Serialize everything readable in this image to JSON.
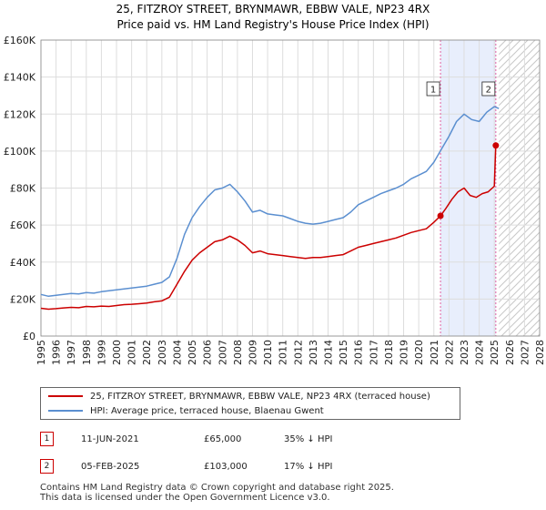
{
  "chart_data": {
    "type": "line",
    "title_line1": "25, FITZROY STREET, BRYNMAWR, EBBW VALE, NP23 4RX",
    "title_line2": "Price paid vs. HM Land Registry's House Price Index (HPI)",
    "xlim": [
      1995,
      2028
    ],
    "ylim": [
      0,
      160000
    ],
    "x_ticks": [
      "1995",
      "1996",
      "1997",
      "1998",
      "1999",
      "2000",
      "2001",
      "2002",
      "2003",
      "2004",
      "2005",
      "2006",
      "2007",
      "2008",
      "2009",
      "2010",
      "2011",
      "2012",
      "2013",
      "2014",
      "2015",
      "2016",
      "2017",
      "2018",
      "2019",
      "2020",
      "2021",
      "2022",
      "2023",
      "2024",
      "2025",
      "2026",
      "2027",
      "2028"
    ],
    "y_ticks": [
      {
        "value": 0,
        "label": "£0"
      },
      {
        "value": 20000,
        "label": "£20K"
      },
      {
        "value": 40000,
        "label": "£40K"
      },
      {
        "value": 60000,
        "label": "£60K"
      },
      {
        "value": 80000,
        "label": "£80K"
      },
      {
        "value": 100000,
        "label": "£100K"
      },
      {
        "value": 120000,
        "label": "£120K"
      },
      {
        "value": 140000,
        "label": "£140K"
      },
      {
        "value": 160000,
        "label": "£160K"
      }
    ],
    "highlight_range": [
      2021.44,
      2025.1
    ],
    "forecast_start": 2025.3,
    "series": [
      {
        "name": "25, FITZROY STREET, BRYNMAWR, EBBW VALE, NP23 4RX (terraced house)",
        "color": "#cc0000",
        "x": [
          1995.0,
          1995.5,
          1996.0,
          1996.5,
          1997.0,
          1997.5,
          1998.0,
          1998.5,
          1999.0,
          1999.5,
          2000.0,
          2000.5,
          2001.0,
          2001.5,
          2002.0,
          2002.5,
          2003.0,
          2003.5,
          2004.0,
          2004.5,
          2005.0,
          2005.5,
          2006.0,
          2006.5,
          2007.0,
          2007.5,
          2008.0,
          2008.5,
          2009.0,
          2009.5,
          2010.0,
          2010.5,
          2011.0,
          2011.5,
          2012.0,
          2012.5,
          2013.0,
          2013.5,
          2014.0,
          2014.5,
          2015.0,
          2015.5,
          2016.0,
          2016.5,
          2017.0,
          2017.5,
          2018.0,
          2018.5,
          2019.0,
          2019.5,
          2020.0,
          2020.5,
          2021.0,
          2021.44,
          2021.8,
          2022.2,
          2022.6,
          2023.0,
          2023.4,
          2023.8,
          2024.2,
          2024.6,
          2025.0,
          2025.1
        ],
        "y": [
          15000,
          14500,
          14800,
          15200,
          15500,
          15300,
          16000,
          15800,
          16200,
          16000,
          16500,
          17000,
          17200,
          17500,
          17800,
          18500,
          19000,
          21000,
          28000,
          35000,
          41000,
          45000,
          48000,
          51000,
          52000,
          54000,
          52000,
          49000,
          45000,
          46000,
          44500,
          44000,
          43500,
          43000,
          42500,
          42000,
          42500,
          42500,
          43000,
          43500,
          44000,
          46000,
          48000,
          49000,
          50000,
          51000,
          52000,
          53000,
          54500,
          56000,
          57000,
          58000,
          61500,
          65000,
          69000,
          74000,
          78000,
          80000,
          76000,
          75000,
          77000,
          78000,
          81000,
          103000
        ],
        "marker_points": [
          {
            "x": 2021.44,
            "y": 65000,
            "label": "1"
          },
          {
            "x": 2025.1,
            "y": 103000,
            "label": "2"
          }
        ]
      },
      {
        "name": "HPI: Average price, terraced house, Blaenau Gwent",
        "color": "#5b8fd0",
        "x": [
          1995.0,
          1995.5,
          1996.0,
          1996.5,
          1997.0,
          1997.5,
          1998.0,
          1998.5,
          1999.0,
          1999.5,
          2000.0,
          2000.5,
          2001.0,
          2001.5,
          2002.0,
          2002.5,
          2003.0,
          2003.5,
          2004.0,
          2004.5,
          2005.0,
          2005.5,
          2006.0,
          2006.5,
          2007.0,
          2007.5,
          2008.0,
          2008.5,
          2009.0,
          2009.5,
          2010.0,
          2010.5,
          2011.0,
          2011.5,
          2012.0,
          2012.5,
          2013.0,
          2013.5,
          2014.0,
          2014.5,
          2015.0,
          2015.5,
          2016.0,
          2016.5,
          2017.0,
          2017.5,
          2018.0,
          2018.5,
          2019.0,
          2019.5,
          2020.0,
          2020.5,
          2021.0,
          2021.5,
          2022.0,
          2022.5,
          2023.0,
          2023.5,
          2024.0,
          2024.5,
          2025.0,
          2025.3
        ],
        "y": [
          22500,
          21500,
          22000,
          22500,
          23000,
          22800,
          23500,
          23200,
          24000,
          24500,
          25000,
          25500,
          26000,
          26500,
          27000,
          28000,
          29000,
          32000,
          42000,
          55000,
          64000,
          70000,
          75000,
          79000,
          80000,
          82000,
          78000,
          73000,
          67000,
          68000,
          66000,
          65500,
          65000,
          63500,
          62000,
          61000,
          60500,
          61000,
          62000,
          63000,
          64000,
          67000,
          71000,
          73000,
          75000,
          77000,
          78500,
          80000,
          82000,
          85000,
          87000,
          89000,
          94000,
          101000,
          108000,
          116000,
          120000,
          117000,
          116000,
          121000,
          124000,
          123000
        ]
      }
    ],
    "legend": [
      "25, FITZROY STREET, BRYNMAWR, EBBW VALE, NP23 4RX (terraced house)",
      "HPI: Average price, terraced house, Blaenau Gwent"
    ],
    "legend_position": "below"
  },
  "sales": [
    {
      "num": "1",
      "date": "11-JUN-2021",
      "price": "£65,000",
      "hpi": "35% ↓ HPI"
    },
    {
      "num": "2",
      "date": "05-FEB-2025",
      "price": "£103,000",
      "hpi": "17% ↓ HPI"
    }
  ],
  "footer_line1": "Contains HM Land Registry data © Crown copyright and database right 2025.",
  "footer_line2": "This data is licensed under the Open Government Licence v3.0."
}
